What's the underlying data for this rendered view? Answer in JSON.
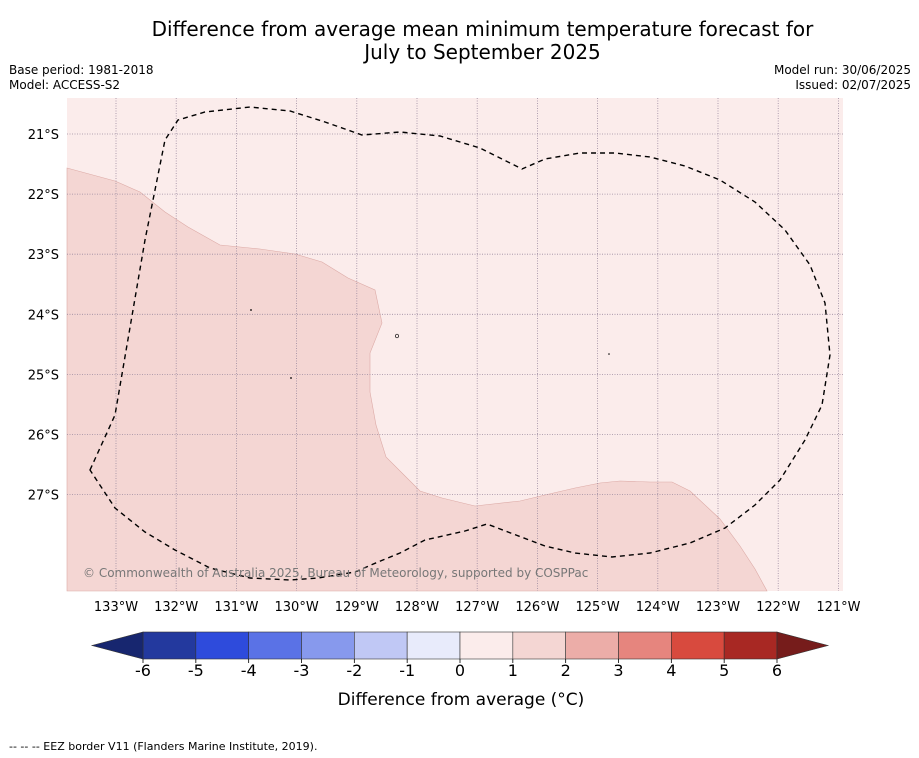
{
  "header": {
    "title_line1": "Difference from average mean minimum temperature forecast for",
    "title_line2": "July to September 2025",
    "base_period": "Base period: 1981-2018",
    "model": "Model: ACCESS-S2",
    "model_run": "Model run: 30/06/2025",
    "issued": "Issued: 02/07/2025"
  },
  "map": {
    "lon_labels": [
      "133°W",
      "132°W",
      "131°W",
      "130°W",
      "129°W",
      "128°W",
      "127°W",
      "126°W",
      "125°W",
      "124°W",
      "123°W",
      "122°W",
      "121°W"
    ],
    "lat_labels": [
      "21°S",
      "22°S",
      "23°S",
      "24°S",
      "25°S",
      "26°S",
      "27°S"
    ],
    "copyright": "© Commonwealth of Australia 2025, Bureau of Meteorology, supported by COSPPac",
    "regions": [
      {
        "category": "0 to 1",
        "color": "#fbeceb"
      },
      {
        "category": "1 to 2",
        "color": "#f4d6d3"
      }
    ]
  },
  "colorbar": {
    "ticks": [
      "-6",
      "-5",
      "-4",
      "-3",
      "-2",
      "-1",
      "0",
      "1",
      "2",
      "3",
      "4",
      "5",
      "6"
    ],
    "colors": [
      "#23399e",
      "#2e4bdc",
      "#5a72e6",
      "#8799ed",
      "#c0c8f5",
      "#e8ebfb",
      "#fbeceb",
      "#f4d6d3",
      "#ecada8",
      "#e6857e",
      "#d84a3e",
      "#a82823"
    ],
    "under_color": "#17266f",
    "over_color": "#761c1b",
    "label": "Difference from average (°C)"
  },
  "footnote": "-- -- -- EEZ border V11 (Flanders Marine Institute, 2019)."
}
